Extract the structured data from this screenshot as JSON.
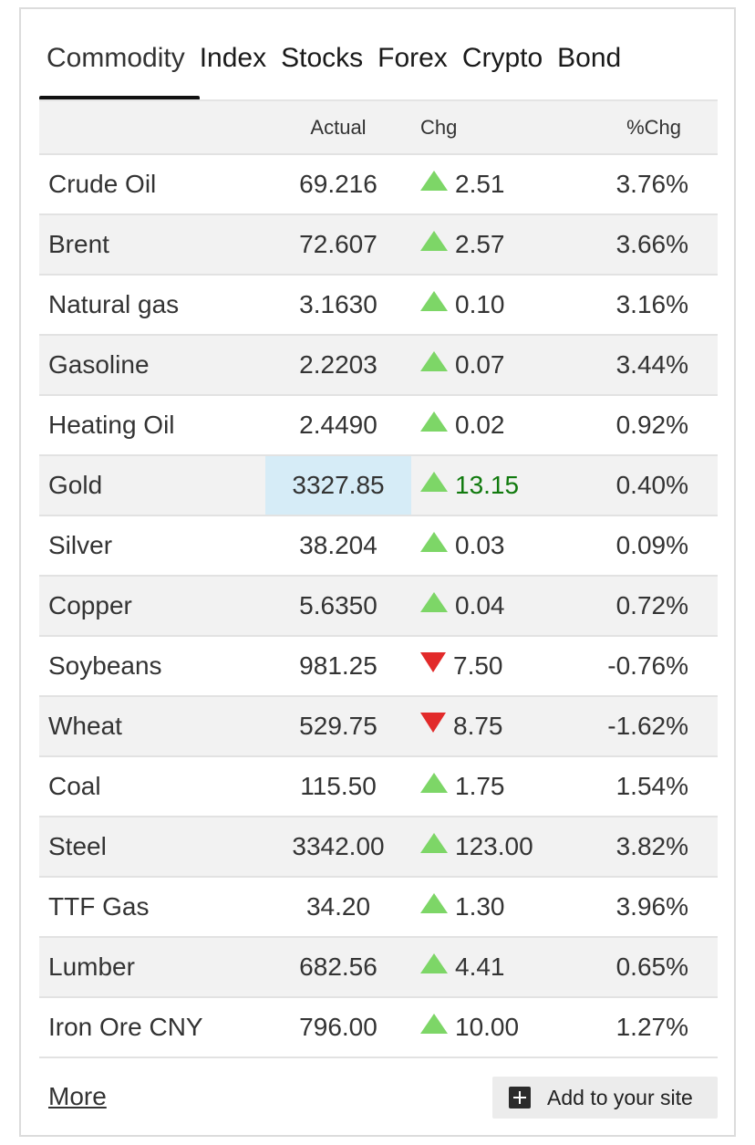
{
  "tabs": [
    {
      "label": "Commodity",
      "active": true
    },
    {
      "label": "Index",
      "active": false
    },
    {
      "label": "Stocks",
      "active": false
    },
    {
      "label": "Forex",
      "active": false
    },
    {
      "label": "Crypto",
      "active": false
    },
    {
      "label": "Bond",
      "active": false
    }
  ],
  "table": {
    "headers": {
      "name": "",
      "actual": "Actual",
      "chg": "Chg",
      "pct": "%Chg"
    },
    "rows": [
      {
        "name": "Crude Oil",
        "actual": "69.216",
        "chg": "2.51",
        "pct": "3.76%",
        "dir": "up"
      },
      {
        "name": "Brent",
        "actual": "72.607",
        "chg": "2.57",
        "pct": "3.66%",
        "dir": "up"
      },
      {
        "name": "Natural gas",
        "actual": "3.1630",
        "chg": "0.10",
        "pct": "3.16%",
        "dir": "up"
      },
      {
        "name": "Gasoline",
        "actual": "2.2203",
        "chg": "0.07",
        "pct": "3.44%",
        "dir": "up"
      },
      {
        "name": "Heating Oil",
        "actual": "2.4490",
        "chg": "0.02",
        "pct": "0.92%",
        "dir": "up"
      },
      {
        "name": "Gold",
        "actual": "3327.85",
        "chg": "13.15",
        "pct": "0.40%",
        "dir": "up",
        "highlight": true
      },
      {
        "name": "Silver",
        "actual": "38.204",
        "chg": "0.03",
        "pct": "0.09%",
        "dir": "up"
      },
      {
        "name": "Copper",
        "actual": "5.6350",
        "chg": "0.04",
        "pct": "0.72%",
        "dir": "up"
      },
      {
        "name": "Soybeans",
        "actual": "981.25",
        "chg": "7.50",
        "pct": "-0.76%",
        "dir": "down"
      },
      {
        "name": "Wheat",
        "actual": "529.75",
        "chg": "8.75",
        "pct": "-1.62%",
        "dir": "down"
      },
      {
        "name": "Coal",
        "actual": "115.50",
        "chg": "1.75",
        "pct": "1.54%",
        "dir": "up"
      },
      {
        "name": "Steel",
        "actual": "3342.00",
        "chg": "123.00",
        "pct": "3.82%",
        "dir": "up"
      },
      {
        "name": "TTF Gas",
        "actual": "34.20",
        "chg": "1.30",
        "pct": "3.96%",
        "dir": "up"
      },
      {
        "name": "Lumber",
        "actual": "682.56",
        "chg": "4.41",
        "pct": "0.65%",
        "dir": "up"
      },
      {
        "name": "Iron Ore CNY",
        "actual": "796.00",
        "chg": "10.00",
        "pct": "1.27%",
        "dir": "up"
      }
    ]
  },
  "footer": {
    "more_label": "More",
    "add_label": "Add to your site"
  },
  "colors": {
    "up_arrow": "#7dd667",
    "down_arrow": "#e22a2a",
    "positive_text": "#117a0e",
    "negative_text": "#a10c0c",
    "highlight_cell": "#d6ecf7"
  }
}
